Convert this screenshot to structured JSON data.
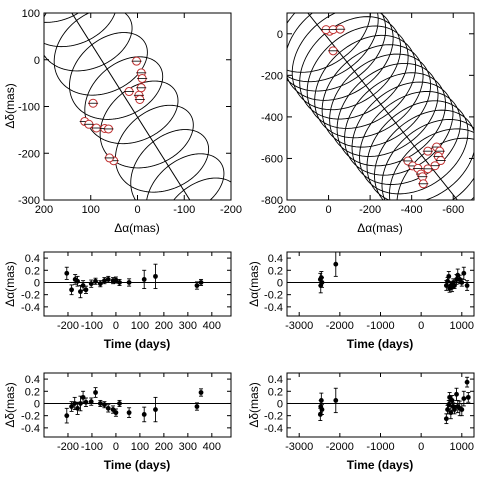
{
  "chart_data": [
    {
      "id": "orbit-left",
      "type": "scatter",
      "xlabel": "Δα(mas)",
      "ylabel": "Δδ(mas)",
      "xlim": [
        200,
        -200
      ],
      "ylim": [
        -300,
        100
      ],
      "xticks": [
        200,
        100,
        0,
        -100,
        -200
      ],
      "yticks": [
        100,
        0,
        -100,
        -200,
        -300
      ],
      "grid": false,
      "track": {
        "from": [
          150,
          115
        ],
        "to": [
          -112,
          -300
        ]
      },
      "loops": {
        "count": 8,
        "t_start": -0.15,
        "t_end": 1.1,
        "rx": 46,
        "ry": 33,
        "amp": 40
      },
      "points": [
        [
          2,
          -3
        ],
        [
          -8,
          -28
        ],
        [
          -10,
          -40
        ],
        [
          -8,
          -60
        ],
        [
          -3,
          -76
        ],
        [
          -5,
          -85
        ],
        [
          18,
          -68
        ],
        [
          95,
          -93
        ],
        [
          113,
          -132
        ],
        [
          104,
          -138
        ],
        [
          88,
          -146
        ],
        [
          70,
          -147
        ],
        [
          62,
          -148
        ],
        [
          51,
          -216
        ],
        [
          60,
          -210
        ]
      ]
    },
    {
      "id": "orbit-right",
      "type": "scatter",
      "xlabel": "Δα(mas)",
      "ylabel": "",
      "xlim": [
        200,
        -700
      ],
      "ylim": [
        -800,
        100
      ],
      "xticks": [
        200,
        0,
        -200,
        -400,
        -600
      ],
      "yticks": [
        0,
        -200,
        -400,
        -600,
        -800
      ],
      "grid": false,
      "track": {
        "from": [
          100,
          100
        ],
        "to": [
          -620,
          -800
        ]
      },
      "loops": {
        "count": 20,
        "t_start": 0.05,
        "t_end": 0.98,
        "rx": 58,
        "ry": 42,
        "amp": 40
      },
      "points": [
        [
          -5,
          12
        ],
        [
          12,
          20
        ],
        [
          -22,
          20
        ],
        [
          -56,
          22
        ],
        [
          -22,
          -82
        ],
        [
          -382,
          -612
        ],
        [
          -405,
          -636
        ],
        [
          -430,
          -648
        ],
        [
          -445,
          -675
        ],
        [
          -452,
          -688
        ],
        [
          -478,
          -565
        ],
        [
          -520,
          -545
        ],
        [
          -535,
          -565
        ],
        [
          -528,
          -590
        ],
        [
          -540,
          -610
        ],
        [
          -512,
          -635
        ],
        [
          -478,
          -650
        ],
        [
          -456,
          -722
        ]
      ]
    },
    {
      "id": "resid-ra-left",
      "type": "scatter",
      "xlabel": "Time (days)",
      "ylabel": "Δα(mas)",
      "xlim": [
        -300,
        480
      ],
      "ylim": [
        -0.55,
        0.5
      ],
      "xticks": [
        -200,
        -100,
        0,
        100,
        200,
        300,
        400
      ],
      "yticks": [
        0.4,
        0.2,
        0,
        -0.2,
        -0.4
      ],
      "grid": false,
      "series": [
        {
          "x": [
            -205,
            -185,
            -170,
            -160,
            -148,
            -137,
            -125,
            -103,
            -85,
            -65,
            -48,
            -32,
            -12,
            0,
            15,
            55,
            118,
            165,
            338,
            355
          ],
          "y": [
            0.15,
            -0.12,
            0.05,
            0.02,
            -0.15,
            -0.05,
            -0.12,
            -0.02,
            0.02,
            -0.02,
            0.03,
            0.05,
            0.03,
            0.04,
            0.0,
            0.0,
            0.05,
            0.1,
            -0.05,
            0.0
          ],
          "err": [
            0.1,
            0.08,
            0.08,
            0.08,
            0.1,
            0.08,
            0.06,
            0.06,
            0.05,
            0.05,
            0.05,
            0.05,
            0.05,
            0.05,
            0.05,
            0.06,
            0.15,
            0.2,
            0.06,
            0.05
          ]
        }
      ]
    },
    {
      "id": "resid-ra-right",
      "type": "scatter",
      "xlabel": "Time (days)",
      "ylabel": "Δα(mas)",
      "xlim": [
        -3300,
        1300
      ],
      "ylim": [
        -0.55,
        0.5
      ],
      "xticks": [
        -3000,
        -2000,
        -1000,
        0,
        1000
      ],
      "yticks": [
        0.4,
        0.2,
        0,
        -0.2,
        -0.4
      ],
      "grid": false,
      "series": [
        {
          "x": [
            -2480,
            -2470,
            -2455,
            -2440,
            -2100,
            620,
            650,
            680,
            700,
            730,
            760,
            790,
            820,
            870,
            900,
            950,
            1000,
            1050,
            1130
          ],
          "y": [
            0.05,
            -0.05,
            0.08,
            0.0,
            0.3,
            -0.05,
            0.02,
            0.1,
            -0.1,
            -0.05,
            -0.08,
            0.0,
            -0.05,
            0.05,
            0.12,
            0.05,
            0.0,
            0.15,
            -0.05
          ],
          "err": [
            0.1,
            0.12,
            0.1,
            0.08,
            0.2,
            0.08,
            0.06,
            0.08,
            0.06,
            0.06,
            0.07,
            0.06,
            0.05,
            0.08,
            0.1,
            0.07,
            0.06,
            0.1,
            0.08
          ]
        }
      ]
    },
    {
      "id": "resid-dec-left",
      "type": "scatter",
      "xlabel": "Time (days)",
      "ylabel": "Δδ(mas)",
      "xlim": [
        -300,
        480
      ],
      "ylim": [
        -0.55,
        0.5
      ],
      "xticks": [
        -200,
        -100,
        0,
        100,
        200,
        300,
        400
      ],
      "yticks": [
        0.4,
        0.2,
        0,
        -0.2,
        -0.4
      ],
      "grid": false,
      "series": [
        {
          "x": [
            -205,
            -185,
            -172,
            -160,
            -148,
            -137,
            -125,
            -103,
            -85,
            -65,
            -48,
            -32,
            -12,
            0,
            15,
            55,
            118,
            165,
            338,
            355
          ],
          "y": [
            -0.2,
            -0.05,
            0.0,
            -0.08,
            0.0,
            0.1,
            0.02,
            0.03,
            0.18,
            0.0,
            -0.02,
            -0.08,
            -0.1,
            -0.15,
            0.0,
            -0.15,
            -0.18,
            -0.1,
            -0.05,
            0.18
          ],
          "err": [
            0.12,
            0.08,
            0.1,
            0.1,
            0.12,
            0.1,
            0.07,
            0.06,
            0.08,
            0.05,
            0.05,
            0.06,
            0.06,
            0.06,
            0.05,
            0.08,
            0.12,
            0.2,
            0.06,
            0.06
          ]
        }
      ]
    },
    {
      "id": "resid-dec-right",
      "type": "scatter",
      "xlabel": "Time (days)",
      "ylabel": "Δδ(mas)",
      "xlim": [
        -3300,
        1300
      ],
      "ylim": [
        -0.55,
        0.5
      ],
      "xticks": [
        -3000,
        -2000,
        -1000,
        0,
        1000
      ],
      "yticks": [
        0.4,
        0.2,
        0,
        -0.2,
        -0.4
      ],
      "grid": false,
      "series": [
        {
          "x": [
            -2480,
            -2470,
            -2455,
            -2440,
            -2100,
            620,
            650,
            680,
            700,
            730,
            760,
            790,
            820,
            870,
            900,
            950,
            1000,
            1050,
            1130,
            1160
          ],
          "y": [
            -0.18,
            -0.05,
            0.05,
            -0.1,
            0.05,
            -0.25,
            -0.1,
            -0.02,
            0.1,
            -0.15,
            0.05,
            -0.05,
            -0.1,
            0.15,
            -0.05,
            -0.08,
            -0.1,
            0.08,
            0.35,
            0.1
          ],
          "err": [
            0.1,
            0.1,
            0.12,
            0.08,
            0.2,
            0.08,
            0.07,
            0.07,
            0.08,
            0.1,
            0.08,
            0.06,
            0.07,
            0.1,
            0.1,
            0.12,
            0.1,
            0.12,
            0.08,
            0.08
          ]
        }
      ]
    }
  ]
}
